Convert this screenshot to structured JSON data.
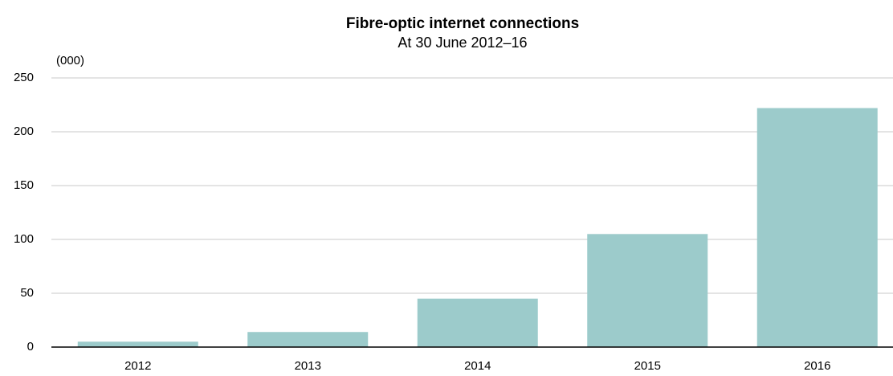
{
  "chart_data": {
    "type": "bar",
    "title": "Fibre-optic internet connections",
    "subtitle": "At 30 June 2012–16",
    "y_label": "(000)",
    "categories": [
      "2012",
      "2013",
      "2014",
      "2015",
      "2016"
    ],
    "values": [
      5,
      14,
      45,
      105,
      222
    ],
    "color": "#9ccbcb",
    "ylim": [
      0,
      250
    ],
    "yticks": [
      0,
      50,
      100,
      150,
      200,
      250
    ],
    "grid": true
  }
}
